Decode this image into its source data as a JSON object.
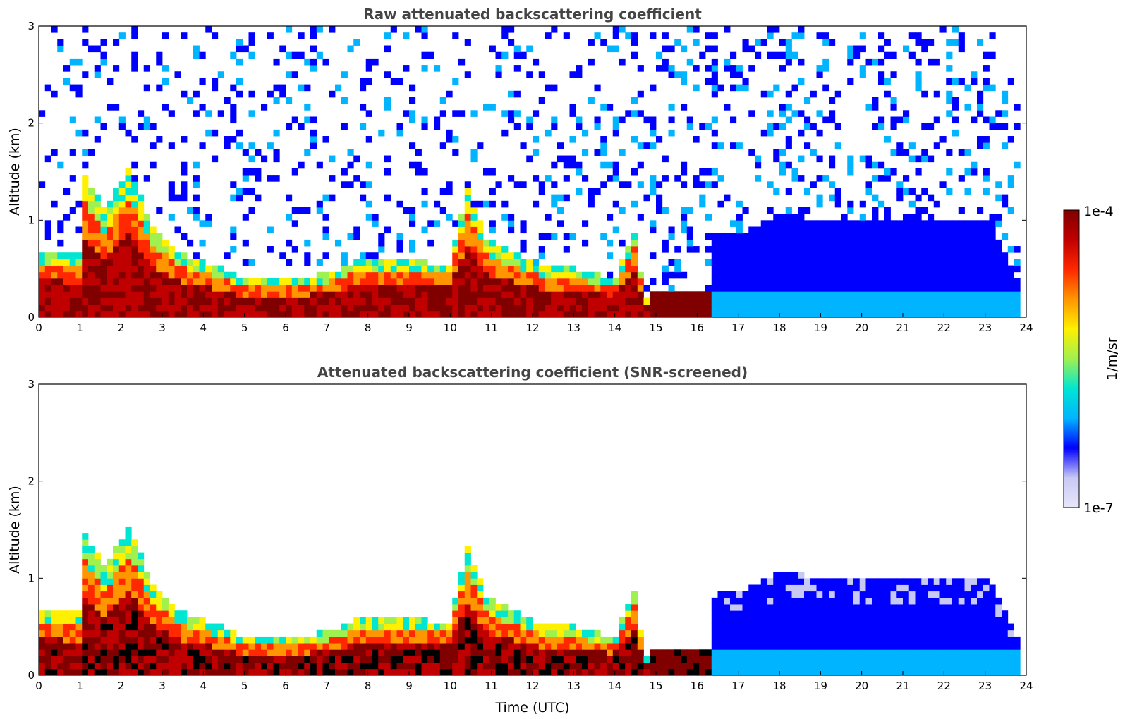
{
  "chart_data": [
    {
      "type": "heatmap",
      "title": "Raw attenuated backscattering coefficient",
      "xlabel": "",
      "ylabel": "Altitude (km)",
      "xlim": [
        0,
        24
      ],
      "ylim": [
        0,
        3
      ],
      "xticks": [
        "0",
        "1",
        "2",
        "3",
        "4",
        "5",
        "6",
        "7",
        "8",
        "9",
        "10",
        "11",
        "12",
        "13",
        "14",
        "15",
        "16",
        "17",
        "18",
        "19",
        "20",
        "21",
        "22",
        "23",
        "24"
      ],
      "yticks": [
        "0",
        "1",
        "2",
        "3"
      ],
      "screened": false
    },
    {
      "type": "heatmap",
      "title": "Attenuated backscattering coefficient (SNR-screened)",
      "xlabel": "Time (UTC)",
      "ylabel": "Altitude (km)",
      "xlim": [
        0,
        24
      ],
      "ylim": [
        0,
        3
      ],
      "xticks": [
        "0",
        "1",
        "2",
        "3",
        "4",
        "5",
        "6",
        "7",
        "8",
        "9",
        "10",
        "11",
        "12",
        "13",
        "14",
        "15",
        "16",
        "17",
        "18",
        "19",
        "20",
        "21",
        "22",
        "23",
        "24"
      ],
      "yticks": [
        "0",
        "1",
        "2",
        "3"
      ],
      "screened": true
    }
  ],
  "colorbar": {
    "label": "1/m/sr",
    "max_label": "1e-4",
    "min_label": "1e-7",
    "scale": "log",
    "colors": [
      "#e6e6fa",
      "#c8c8f5",
      "#0000ff",
      "#00b4ff",
      "#00e6d2",
      "#a0f050",
      "#fff000",
      "#ff9600",
      "#ff2800",
      "#c00000",
      "#800000"
    ]
  }
}
